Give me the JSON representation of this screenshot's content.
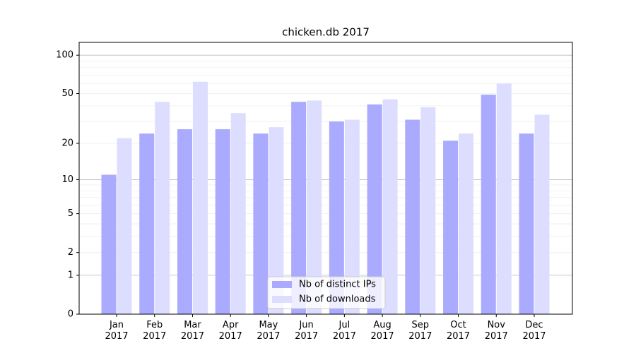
{
  "chart_data": {
    "type": "bar",
    "title": "chicken.db 2017",
    "categories": [
      "Jan 2017",
      "Feb 2017",
      "Mar 2017",
      "Apr 2017",
      "May 2017",
      "Jun 2017",
      "Jul 2017",
      "Aug 2017",
      "Sep 2017",
      "Oct 2017",
      "Nov 2017",
      "Dec 2017"
    ],
    "series": [
      {
        "name": "Nb of distinct IPs",
        "color": "#aaaaff",
        "values": [
          11,
          24,
          26,
          26,
          24,
          43,
          30,
          41,
          31,
          21,
          49,
          24
        ]
      },
      {
        "name": "Nb of downloads",
        "color": "#ddddff",
        "values": [
          22,
          43,
          62,
          35,
          27,
          44,
          31,
          45,
          39,
          24,
          60,
          34
        ]
      }
    ],
    "yscale": "log1p",
    "ylim": [
      0,
      126
    ],
    "yticks": [
      0,
      1,
      2,
      5,
      10,
      20,
      50,
      100
    ],
    "grid": {
      "major": [
        1,
        10,
        100
      ],
      "minor": [
        2,
        3,
        4,
        5,
        6,
        7,
        8,
        9,
        20,
        30,
        40,
        50,
        60,
        70,
        80,
        90
      ]
    },
    "legend": "lower center"
  }
}
